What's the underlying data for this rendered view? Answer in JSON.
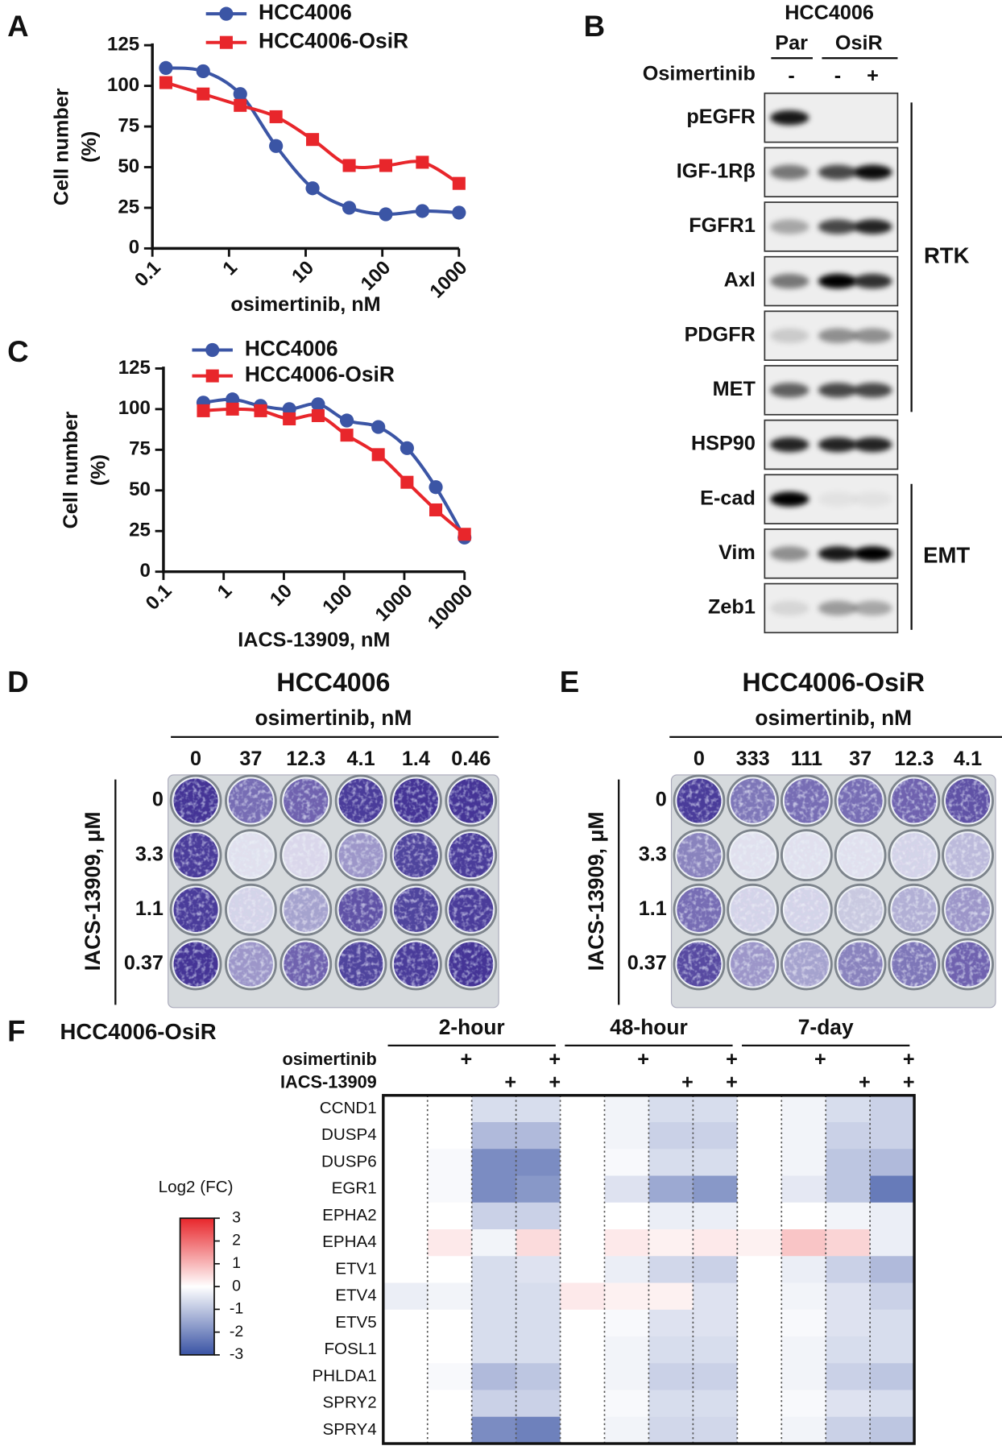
{
  "panel_labels": [
    "A",
    "B",
    "C",
    "D",
    "E",
    "F"
  ],
  "chart_data": [
    {
      "type": "line",
      "xlabel": "osimertinib, nM",
      "ylabel": [
        "Cell number",
        "(%)"
      ],
      "xscale": "log",
      "xlim": [
        0.1,
        1000
      ],
      "xticks": [
        0.1,
        1,
        10,
        100,
        1000
      ],
      "ylim": [
        0,
        125
      ],
      "yticks": [
        0,
        25,
        50,
        75,
        100,
        125
      ],
      "x": [
        0.15,
        0.46,
        1.4,
        4.1,
        12.3,
        37,
        111,
        333,
        1000
      ],
      "series": [
        {
          "name": "HCC4006",
          "color": "#3b55a5",
          "marker": "circle",
          "values": [
            111,
            109,
            95,
            63,
            37,
            25,
            21,
            23,
            22
          ]
        },
        {
          "name": "HCC4006-OsiR",
          "color": "#e8262b",
          "marker": "square",
          "values": [
            102,
            95,
            88,
            81,
            67,
            51,
            51,
            53,
            40
          ]
        }
      ]
    },
    {
      "type": "line",
      "xlabel": "IACS-13909, nM",
      "ylabel": [
        "Cell number",
        "(%)"
      ],
      "xscale": "log",
      "xlim": [
        0.1,
        10000
      ],
      "xticks": [
        0.1,
        1,
        10,
        100,
        1000,
        10000
      ],
      "ylim": [
        0,
        125
      ],
      "yticks": [
        0,
        25,
        50,
        75,
        100,
        125
      ],
      "x": [
        0.46,
        1.4,
        4.1,
        12.3,
        37,
        111,
        370,
        1111,
        3333,
        10000
      ],
      "series": [
        {
          "name": "HCC4006",
          "color": "#3b55a5",
          "marker": "circle",
          "values": [
            104,
            106,
            102,
            100,
            103,
            93,
            89,
            76,
            52,
            21
          ]
        },
        {
          "name": "HCC4006-OsiR",
          "color": "#e8262b",
          "marker": "square",
          "values": [
            99,
            100,
            99,
            94,
            96,
            84,
            72,
            55,
            38,
            23
          ]
        }
      ]
    }
  ],
  "blot": {
    "cell_line": "HCC4006",
    "lines": [
      "Par",
      "OsiR"
    ],
    "treatment": "Osimertinib",
    "treatments": [
      "-",
      "-",
      "+"
    ],
    "rows": [
      {
        "label": "pEGFR",
        "bands": [
          0.9,
          0,
          0
        ]
      },
      {
        "label": "IGF-1Rβ",
        "bands": [
          0.5,
          0.7,
          0.95
        ]
      },
      {
        "label": "FGFR1",
        "bands": [
          0.3,
          0.7,
          0.85
        ]
      },
      {
        "label": "Axl",
        "bands": [
          0.5,
          1,
          0.8
        ]
      },
      {
        "label": "PDGFR",
        "bands": [
          0.15,
          0.4,
          0.4
        ]
      },
      {
        "label": "MET",
        "bands": [
          0.6,
          0.7,
          0.7
        ]
      },
      {
        "label": "HSP90",
        "bands": [
          0.85,
          0.85,
          0.85
        ]
      },
      {
        "label": "E-cad",
        "bands": [
          1,
          0.05,
          0.05
        ]
      },
      {
        "label": "Vim",
        "bands": [
          0.4,
          0.9,
          1
        ]
      },
      {
        "label": "Zeb1",
        "bands": [
          0.1,
          0.35,
          0.3
        ]
      }
    ],
    "groups": [
      {
        "label": "RTK"
      },
      {
        "label": "EMT"
      }
    ]
  },
  "plates": [
    {
      "title": "HCC4006",
      "subtitle": "osimertinib, nM",
      "columns": [
        "0",
        "37",
        "12.3",
        "4.1",
        "1.4",
        "0.46"
      ],
      "row_label": "IACS-13909, μM",
      "rows": [
        "0",
        "3.3",
        "1.1",
        "0.37"
      ],
      "coverage": [
        [
          0.9,
          0.55,
          0.6,
          0.85,
          0.9,
          0.9
        ],
        [
          0.85,
          0.05,
          0.08,
          0.35,
          0.8,
          0.85
        ],
        [
          0.85,
          0.1,
          0.3,
          0.7,
          0.8,
          0.85
        ],
        [
          0.9,
          0.35,
          0.6,
          0.8,
          0.85,
          0.9
        ]
      ]
    },
    {
      "title": "HCC4006-OsiR",
      "subtitle": "osimertinib, nM",
      "columns": [
        "0",
        "333",
        "111",
        "37",
        "12.3",
        "4.1"
      ],
      "row_label": "IACS-13909, μM",
      "rows": [
        "0",
        "3.3",
        "1.1",
        "0.37"
      ],
      "coverage": [
        [
          0.85,
          0.5,
          0.55,
          0.55,
          0.6,
          0.7
        ],
        [
          0.45,
          0.05,
          0.05,
          0.05,
          0.1,
          0.2
        ],
        [
          0.55,
          0.1,
          0.1,
          0.15,
          0.25,
          0.35
        ],
        [
          0.75,
          0.35,
          0.3,
          0.45,
          0.5,
          0.6
        ]
      ]
    }
  ],
  "heatmap": {
    "title": "HCC4006-OsiR",
    "groups": [
      "2-hour",
      "48-hour",
      "7-day"
    ],
    "mark": "+",
    "treatments": [
      {
        "name": "osimertinib",
        "on": [
          false,
          true,
          false,
          true
        ]
      },
      {
        "name": "IACS-13909",
        "on": [
          false,
          false,
          true,
          true
        ]
      }
    ],
    "genes": [
      "CCND1",
      "DUSP4",
      "DUSP6",
      "EGR1",
      "EPHA2",
      "EPHA4",
      "ETV1",
      "ETV4",
      "ETV5",
      "FOSL1",
      "PHLDA1",
      "SPRY2",
      "SPRY4"
    ],
    "values": [
      [
        0,
        0,
        -0.6,
        -0.6,
        0,
        -0.2,
        -0.6,
        -0.6,
        0,
        -0.2,
        -0.6,
        -0.8
      ],
      [
        0,
        0,
        -1.2,
        -1.2,
        0,
        -0.2,
        -0.8,
        -0.8,
        0,
        -0.2,
        -0.8,
        -0.8
      ],
      [
        0,
        -0.1,
        -2,
        -2,
        0,
        -0.1,
        -0.6,
        -0.6,
        0,
        -0.2,
        -1,
        -1.2
      ],
      [
        0,
        -0.1,
        -2,
        -1.8,
        0,
        -0.5,
        -1.5,
        -1.8,
        0,
        -0.4,
        -1,
        -2.3
      ],
      [
        0,
        0,
        -0.8,
        -0.8,
        0,
        0,
        -0.3,
        -0.3,
        0,
        0,
        -0.2,
        -0.3
      ],
      [
        0,
        0.3,
        -0.2,
        0.5,
        0,
        0.3,
        0.2,
        0.3,
        0.2,
        0.8,
        0.6,
        -0.3
      ],
      [
        0,
        0,
        -0.6,
        -0.5,
        0,
        -0.3,
        -0.7,
        -0.8,
        0,
        -0.3,
        -0.8,
        -1.2
      ],
      [
        -0.3,
        -0.2,
        -0.6,
        -0.6,
        0.3,
        0.2,
        0.2,
        -0.5,
        0,
        -0.2,
        -0.5,
        -0.8
      ],
      [
        0,
        0,
        -0.6,
        -0.6,
        0,
        -0.1,
        -0.5,
        -0.5,
        0,
        -0.1,
        -0.5,
        -0.6
      ],
      [
        0,
        0,
        -0.6,
        -0.6,
        0,
        -0.2,
        -0.6,
        -0.6,
        0,
        -0.2,
        -0.6,
        -0.6
      ],
      [
        0,
        -0.1,
        -1.2,
        -1,
        0,
        -0.2,
        -0.8,
        -0.8,
        0,
        -0.2,
        -0.8,
        -1
      ],
      [
        0,
        0,
        -0.8,
        -0.8,
        0,
        -0.1,
        -0.6,
        -0.6,
        0,
        -0.1,
        -0.5,
        -0.6
      ],
      [
        0,
        0,
        -2,
        -2.2,
        0,
        -0.2,
        -0.7,
        -0.7,
        0,
        -0.2,
        -0.8,
        -1
      ]
    ],
    "legend_title": "Log2 (FC)",
    "clim": [
      -3,
      3
    ],
    "cticks": [
      3,
      2,
      1,
      0,
      -1,
      -2,
      -3
    ],
    "colors": {
      "low": "#3953a4",
      "mid": "#ffffff",
      "high": "#e8262b"
    }
  }
}
